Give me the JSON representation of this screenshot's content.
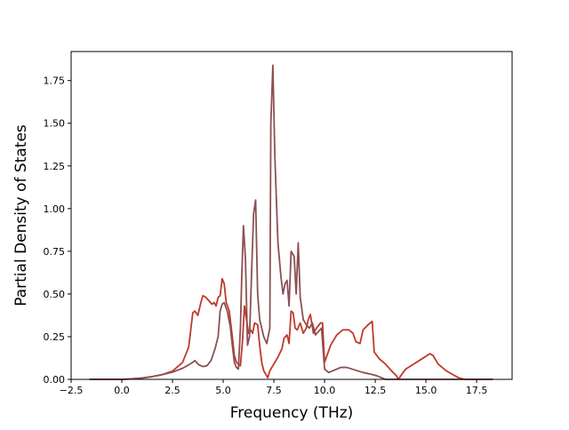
{
  "chart_data": {
    "type": "line",
    "title": "",
    "xlabel": "Frequency (THz)",
    "ylabel": "Partial Density of States",
    "xlim": [
      -2.5,
      19.25
    ],
    "ylim": [
      0.0,
      1.92
    ],
    "x_ticks": [
      -2.5,
      0.0,
      2.5,
      5.0,
      7.5,
      10.0,
      12.5,
      15.0,
      17.5
    ],
    "x_tick_labels": [
      "−2.5",
      "0.0",
      "2.5",
      "5.0",
      "7.5",
      "10.0",
      "12.5",
      "15.0",
      "17.5"
    ],
    "y_ticks": [
      0.0,
      0.25,
      0.5,
      0.75,
      1.0,
      1.25,
      1.5,
      1.75
    ],
    "y_tick_labels": [
      "0.00",
      "0.25",
      "0.50",
      "0.75",
      "1.00",
      "1.25",
      "1.50",
      "1.75"
    ],
    "grid": false,
    "legend": "none",
    "series": [
      {
        "color": "#c0392b",
        "points": [
          [
            -1.6,
            0
          ],
          [
            0,
            0
          ],
          [
            0.5,
            0.003
          ],
          [
            1,
            0.008
          ],
          [
            1.5,
            0.016
          ],
          [
            2,
            0.028
          ],
          [
            2.5,
            0.048
          ],
          [
            3,
            0.1
          ],
          [
            3.3,
            0.19
          ],
          [
            3.5,
            0.39
          ],
          [
            3.6,
            0.4
          ],
          [
            3.75,
            0.375
          ],
          [
            3.9,
            0.45
          ],
          [
            4.0,
            0.49
          ],
          [
            4.15,
            0.48
          ],
          [
            4.3,
            0.46
          ],
          [
            4.45,
            0.44
          ],
          [
            4.55,
            0.45
          ],
          [
            4.65,
            0.43
          ],
          [
            4.75,
            0.48
          ],
          [
            4.85,
            0.49
          ],
          [
            4.95,
            0.59
          ],
          [
            5.05,
            0.56
          ],
          [
            5.15,
            0.45
          ],
          [
            5.3,
            0.4
          ],
          [
            5.45,
            0.25
          ],
          [
            5.55,
            0.14
          ],
          [
            5.65,
            0.1
          ],
          [
            5.85,
            0.08
          ],
          [
            5.95,
            0.22
          ],
          [
            6.05,
            0.43
          ],
          [
            6.15,
            0.35
          ],
          [
            6.25,
            0.27
          ],
          [
            6.35,
            0.29
          ],
          [
            6.45,
            0.27
          ],
          [
            6.55,
            0.33
          ],
          [
            6.7,
            0.32
          ],
          [
            6.8,
            0.2
          ],
          [
            6.9,
            0.1
          ],
          [
            7.0,
            0.05
          ],
          [
            7.1,
            0.03
          ],
          [
            7.2,
            0.01
          ],
          [
            7.3,
            0.05
          ],
          [
            7.5,
            0.09
          ],
          [
            7.7,
            0.13
          ],
          [
            7.9,
            0.18
          ],
          [
            8.0,
            0.24
          ],
          [
            8.15,
            0.26
          ],
          [
            8.25,
            0.21
          ],
          [
            8.35,
            0.4
          ],
          [
            8.45,
            0.39
          ],
          [
            8.55,
            0.3
          ],
          [
            8.65,
            0.29
          ],
          [
            8.8,
            0.33
          ],
          [
            8.95,
            0.27
          ],
          [
            9.1,
            0.3
          ],
          [
            9.2,
            0.35
          ],
          [
            9.3,
            0.38
          ],
          [
            9.45,
            0.27
          ],
          [
            9.6,
            0.3
          ],
          [
            9.8,
            0.33
          ],
          [
            9.9,
            0.33
          ],
          [
            10.0,
            0.1
          ],
          [
            10.3,
            0.2
          ],
          [
            10.6,
            0.26
          ],
          [
            10.9,
            0.29
          ],
          [
            11.2,
            0.29
          ],
          [
            11.4,
            0.27
          ],
          [
            11.55,
            0.22
          ],
          [
            11.75,
            0.21
          ],
          [
            11.9,
            0.29
          ],
          [
            12.15,
            0.32
          ],
          [
            12.35,
            0.34
          ],
          [
            12.45,
            0.16
          ],
          [
            12.7,
            0.12
          ],
          [
            13.0,
            0.09
          ],
          [
            13.3,
            0.05
          ],
          [
            13.55,
            0.02
          ],
          [
            13.65,
            0.0
          ],
          [
            13.75,
            0.02
          ],
          [
            14.0,
            0.06
          ],
          [
            14.4,
            0.09
          ],
          [
            14.8,
            0.12
          ],
          [
            15.2,
            0.15
          ],
          [
            15.35,
            0.14
          ],
          [
            15.6,
            0.09
          ],
          [
            16.0,
            0.05
          ],
          [
            16.3,
            0.03
          ],
          [
            16.6,
            0.01
          ],
          [
            16.9,
            0.0
          ],
          [
            18.3,
            0.0
          ]
        ]
      },
      {
        "color": "#8c5052",
        "points": [
          [
            -1.6,
            0
          ],
          [
            0,
            0
          ],
          [
            0.5,
            0.003
          ],
          [
            1,
            0.008
          ],
          [
            1.5,
            0.016
          ],
          [
            2,
            0.028
          ],
          [
            2.5,
            0.042
          ],
          [
            3,
            0.065
          ],
          [
            3.3,
            0.085
          ],
          [
            3.5,
            0.1
          ],
          [
            3.6,
            0.11
          ],
          [
            3.8,
            0.085
          ],
          [
            4.0,
            0.075
          ],
          [
            4.2,
            0.08
          ],
          [
            4.4,
            0.11
          ],
          [
            4.6,
            0.18
          ],
          [
            4.75,
            0.25
          ],
          [
            4.85,
            0.4
          ],
          [
            4.95,
            0.44
          ],
          [
            5.05,
            0.45
          ],
          [
            5.2,
            0.4
          ],
          [
            5.35,
            0.31
          ],
          [
            5.45,
            0.2
          ],
          [
            5.55,
            0.1
          ],
          [
            5.65,
            0.07
          ],
          [
            5.75,
            0.06
          ],
          [
            5.85,
            0.3
          ],
          [
            5.92,
            0.62
          ],
          [
            6.0,
            0.9
          ],
          [
            6.1,
            0.7
          ],
          [
            6.2,
            0.2
          ],
          [
            6.3,
            0.25
          ],
          [
            6.4,
            0.62
          ],
          [
            6.5,
            0.97
          ],
          [
            6.6,
            1.05
          ],
          [
            6.7,
            0.5
          ],
          [
            6.8,
            0.35
          ],
          [
            6.9,
            0.3
          ],
          [
            7.0,
            0.25
          ],
          [
            7.15,
            0.21
          ],
          [
            7.3,
            0.3
          ],
          [
            7.35,
            1.5
          ],
          [
            7.45,
            1.84
          ],
          [
            7.55,
            1.3
          ],
          [
            7.7,
            0.8
          ],
          [
            7.85,
            0.6
          ],
          [
            7.95,
            0.5
          ],
          [
            8.05,
            0.56
          ],
          [
            8.15,
            0.58
          ],
          [
            8.25,
            0.43
          ],
          [
            8.35,
            0.75
          ],
          [
            8.5,
            0.72
          ],
          [
            8.6,
            0.5
          ],
          [
            8.7,
            0.8
          ],
          [
            8.8,
            0.48
          ],
          [
            8.95,
            0.35
          ],
          [
            9.1,
            0.32
          ],
          [
            9.25,
            0.3
          ],
          [
            9.4,
            0.33
          ],
          [
            9.55,
            0.26
          ],
          [
            9.7,
            0.28
          ],
          [
            9.85,
            0.3
          ],
          [
            10.0,
            0.06
          ],
          [
            10.2,
            0.04
          ],
          [
            10.5,
            0.055
          ],
          [
            10.8,
            0.07
          ],
          [
            11.1,
            0.07
          ],
          [
            11.5,
            0.055
          ],
          [
            11.9,
            0.04
          ],
          [
            12.3,
            0.03
          ],
          [
            12.6,
            0.02
          ],
          [
            13.0,
            0.0
          ],
          [
            18.3,
            0.0
          ]
        ]
      }
    ]
  }
}
